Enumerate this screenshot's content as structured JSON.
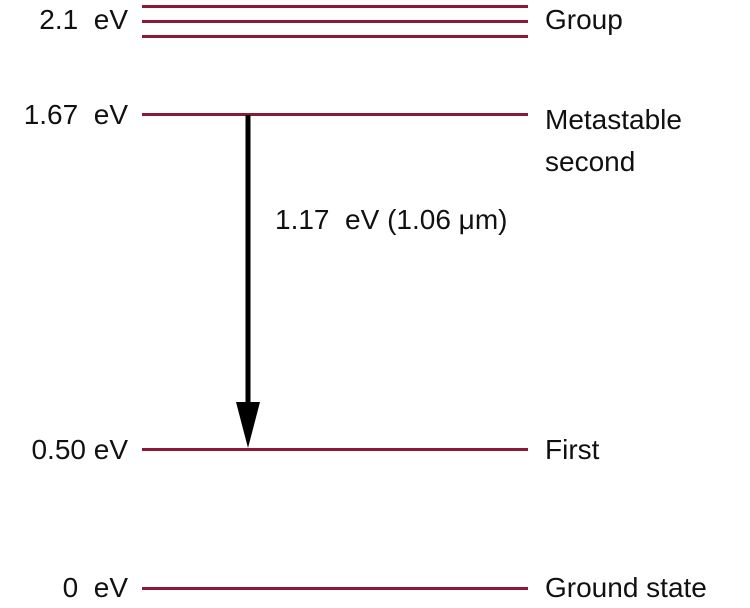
{
  "levels": [
    {
      "energy_label": "2.1  eV",
      "name": "Group"
    },
    {
      "energy_label": "1.67  eV",
      "name": "Metastable\nsecond"
    },
    {
      "energy_label": "0.50 eV",
      "name": "First"
    },
    {
      "energy_label": "0  eV",
      "name": "Ground state"
    }
  ],
  "transition": {
    "label": "1.17  eV (1.06 μm)"
  },
  "colors": {
    "level_line": "#8b1a3a",
    "arrow": "#000000"
  }
}
